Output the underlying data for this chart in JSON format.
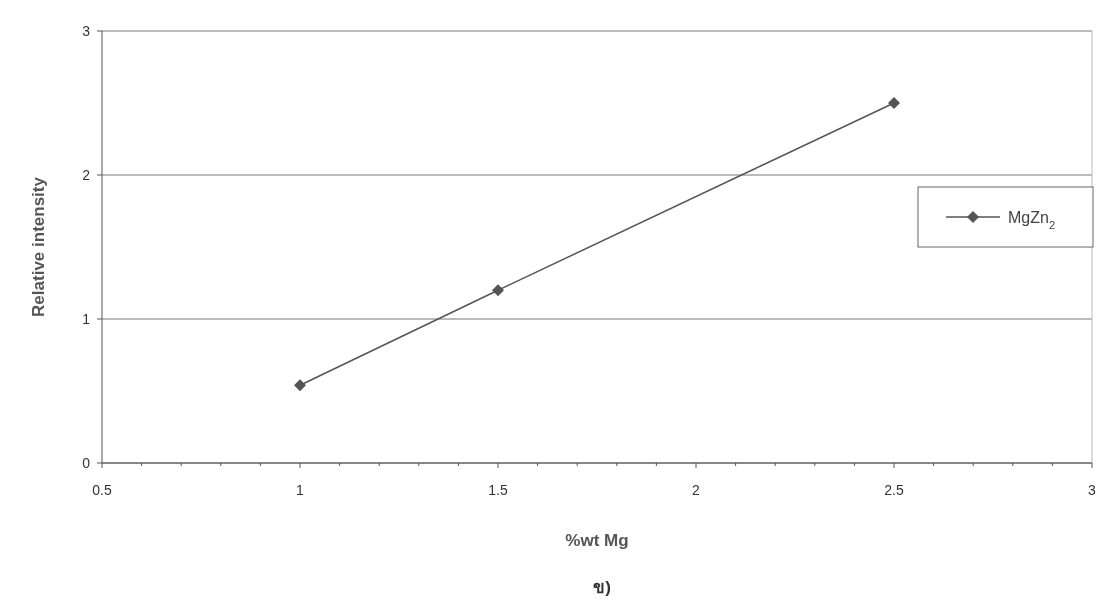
{
  "chart_data": {
    "type": "line",
    "xlabel": "%wt Mg",
    "ylabel": "Relative intensity",
    "annotations": [
      "ข)"
    ],
    "x": [
      1,
      1.5,
      2.5
    ],
    "series": [
      {
        "name": "MgZn$_{2}$",
        "color": "#555555",
        "values": [
          0.54,
          1.2,
          2.5
        ]
      }
    ],
    "xlim": [
      0.5,
      3
    ],
    "xticks": [
      0.5,
      1,
      1.5,
      2,
      2.5,
      3
    ],
    "ylim": [
      0,
      3
    ],
    "yticks": [
      0,
      1,
      2,
      3
    ],
    "grid": "y",
    "legend": "right",
    "marker": "diamond",
    "line_style": "solid"
  }
}
